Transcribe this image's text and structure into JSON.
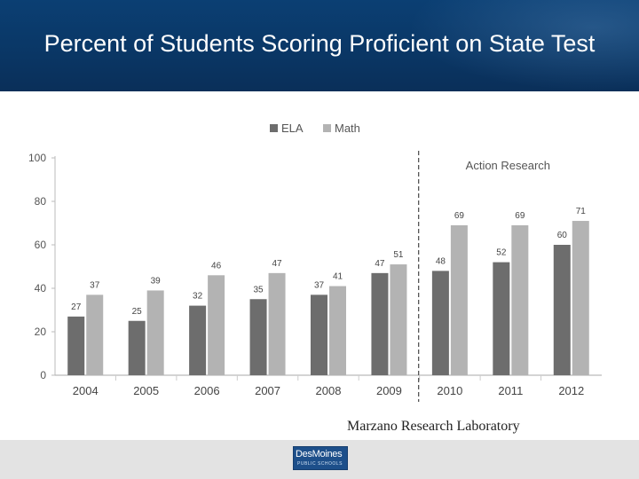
{
  "slide": {
    "title": "Percent of Students Scoring Proficient on State Test",
    "credit": "Marzano Research Laboratory",
    "logo_text": "DesMoines",
    "logo_subtext": "PUBLIC SCHOOLS"
  },
  "chart_data": {
    "type": "bar",
    "title": "",
    "xlabel": "",
    "ylabel": "",
    "categories": [
      "2004",
      "2005",
      "2006",
      "2007",
      "2008",
      "2009",
      "2010",
      "2011",
      "2012"
    ],
    "series": [
      {
        "name": "ELA",
        "values": [
          27,
          25,
          32,
          35,
          37,
          47,
          48,
          52,
          60
        ],
        "color": "#6d6d6d"
      },
      {
        "name": "Math",
        "values": [
          37,
          39,
          46,
          47,
          41,
          51,
          69,
          69,
          71
        ],
        "color": "#b3b3b3"
      }
    ],
    "ylim": [
      0,
      100
    ],
    "yticks": [
      0,
      20,
      40,
      60,
      80,
      100
    ],
    "grid": false,
    "legend": "top",
    "annotation": {
      "text": "Action Research",
      "divider_between": [
        "2009",
        "2010"
      ]
    }
  }
}
